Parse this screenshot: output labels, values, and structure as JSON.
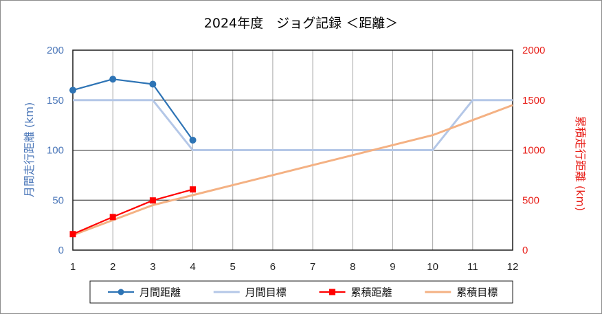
{
  "chart_data": {
    "type": "line",
    "title": "2024年度　ジョグ記録 ＜距離＞",
    "xlabel": "",
    "ylabel_left": "月間走行距離 (km)",
    "ylabel_right": "累積走行距離 (km)",
    "x": [
      1,
      2,
      3,
      4,
      5,
      6,
      7,
      8,
      9,
      10,
      11,
      12
    ],
    "x_ticks": [
      "1",
      "2",
      "3",
      "4",
      "5",
      "6",
      "7",
      "8",
      "9",
      "10",
      "11",
      "12"
    ],
    "ylim_left": [
      0,
      200
    ],
    "ylim_right": [
      0,
      2000
    ],
    "y_ticks_left": [
      "0",
      "50",
      "100",
      "150",
      "200"
    ],
    "y_ticks_right": [
      "0",
      "500",
      "1000",
      "1500",
      "2000"
    ],
    "grid": true,
    "legend_position": "bottom",
    "series": [
      {
        "name": "月間距離",
        "axis": "left",
        "color": "#2e74b5",
        "marker": "circle",
        "x": [
          1,
          2,
          3,
          4
        ],
        "values": [
          160,
          171,
          166,
          110
        ]
      },
      {
        "name": "月間目標",
        "axis": "left",
        "color": "#b4c7e7",
        "marker": "none",
        "x": [
          1,
          2,
          3,
          4,
          5,
          6,
          7,
          8,
          9,
          10,
          11,
          12
        ],
        "values": [
          150,
          150,
          150,
          100,
          100,
          100,
          100,
          100,
          100,
          100,
          150,
          150
        ]
      },
      {
        "name": "累積距離",
        "axis": "right",
        "color": "#ff0000",
        "marker": "square",
        "x": [
          1,
          2,
          3,
          4
        ],
        "values": [
          160,
          331,
          497,
          607
        ]
      },
      {
        "name": "累積目標",
        "axis": "right",
        "color": "#f4b183",
        "marker": "none",
        "x": [
          1,
          2,
          3,
          4,
          5,
          6,
          7,
          8,
          9,
          10,
          11,
          12
        ],
        "values": [
          150,
          300,
          450,
          550,
          650,
          750,
          850,
          950,
          1050,
          1150,
          1300,
          1450
        ]
      }
    ]
  }
}
